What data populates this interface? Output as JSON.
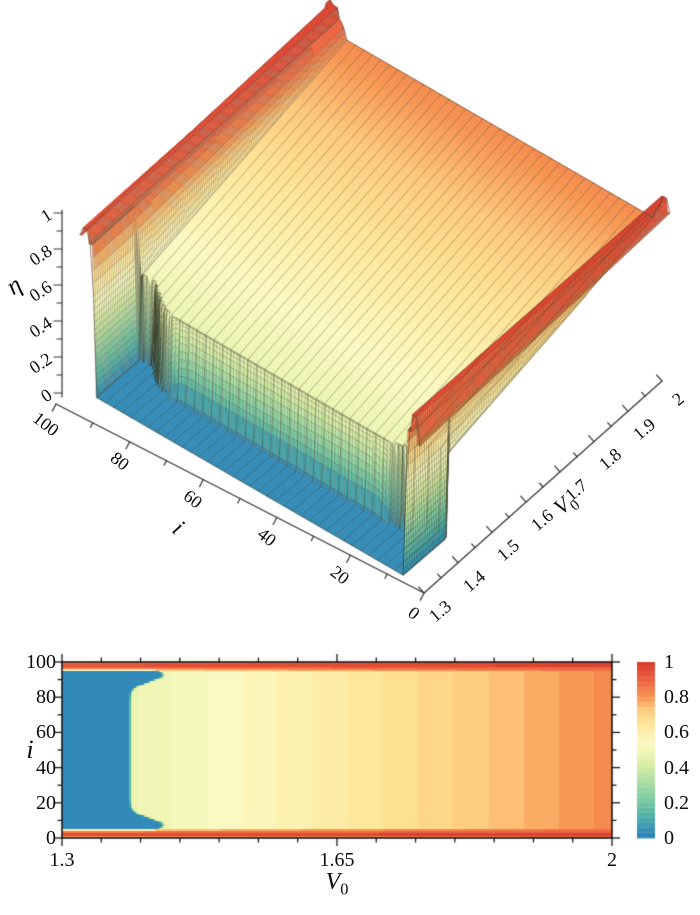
{
  "figure": {
    "background": "#ffffff",
    "surface_plot": {
      "z_axis": {
        "title": "η",
        "tick_labels": [
          "1",
          "0.8",
          "0.6",
          "0.4",
          "0.2",
          "0"
        ],
        "tick_values": [
          1,
          0.8,
          0.6,
          0.4,
          0.2,
          0
        ],
        "range": [
          0,
          1
        ]
      },
      "i_axis": {
        "title": "i",
        "tick_labels": [
          "100",
          "80",
          "60",
          "40",
          "20",
          "0"
        ],
        "tick_values": [
          100,
          80,
          60,
          40,
          20,
          0
        ],
        "range": [
          0,
          100
        ]
      },
      "v_axis": {
        "title": "V",
        "title_sub": "0",
        "tick_labels": [
          "1.3",
          "1.4",
          "1.5",
          "1.6",
          "1.7",
          "1.8",
          "1.9",
          "2"
        ],
        "tick_values": [
          1.3,
          1.4,
          1.5,
          1.6,
          1.7,
          1.8,
          1.9,
          2
        ],
        "range": [
          1.3,
          2
        ]
      }
    },
    "heatmap_plot": {
      "x_axis": {
        "title": "V",
        "title_sub": "0",
        "tick_labels": [
          "1.3",
          "1.65",
          "2"
        ],
        "tick_values": [
          1.3,
          1.65,
          2
        ],
        "minor_step": 0.05,
        "range": [
          1.3,
          2
        ]
      },
      "y_axis": {
        "title": "i",
        "tick_labels": [
          "100",
          "80",
          "60",
          "40",
          "20",
          "0"
        ],
        "tick_values": [
          100,
          80,
          60,
          40,
          20,
          0
        ],
        "minor_step": 10,
        "range": [
          0,
          100
        ]
      },
      "colorbar": {
        "tick_labels": [
          "1",
          "0.8",
          "0.6",
          "0.4",
          "0.2",
          "0"
        ],
        "tick_values": [
          1,
          0.8,
          0.6,
          0.4,
          0.2,
          0
        ],
        "segments": 35
      }
    }
  },
  "colormap": [
    [
      0.0,
      "#2b7fbb"
    ],
    [
      0.06,
      "#3b98b4"
    ],
    [
      0.13,
      "#54b4a6"
    ],
    [
      0.2,
      "#74c6a4"
    ],
    [
      0.3,
      "#a3dba2"
    ],
    [
      0.4,
      "#d3eca4"
    ],
    [
      0.48,
      "#eef6b4"
    ],
    [
      0.54,
      "#fbf9c2"
    ],
    [
      0.6,
      "#fdf0ab"
    ],
    [
      0.66,
      "#fee293"
    ],
    [
      0.73,
      "#fdc97c"
    ],
    [
      0.8,
      "#f79551"
    ],
    [
      0.87,
      "#f07046"
    ],
    [
      0.93,
      "#e5533a"
    ],
    [
      1.0,
      "#d53929"
    ]
  ],
  "chart_data": [
    {
      "type": "surface",
      "title": "",
      "xlabel": "V0",
      "ylabel": "i",
      "zlabel": "eta",
      "x_range": [
        1.3,
        2.0
      ],
      "y_range": [
        0,
        100
      ],
      "z_range": [
        0,
        1
      ],
      "legend": "none",
      "grid": "mesh lines along constant-i every 2.5",
      "model": {
        "valley_level": 0.03,
        "plateau_at_v1.3": 0.42,
        "plateau_at_v2": 0.82,
        "valley_boundary_v0": 1.383,
        "tongue_extra_v0": 0.042,
        "tongue_centers_i": [
          7,
          93
        ],
        "tongue_width_i": 5.5,
        "transition_width_v0": 0.006,
        "bottom_band": {
          "edge_row_eta": [
            0.8,
            0.9
          ],
          "red_line_rows_i": [
            1,
            2
          ],
          "red_line_eta": [
            0.95,
            0.97
          ],
          "inner_row_eta": [
            0.85,
            0.91
          ],
          "extent_i": 4.8
        },
        "top_band": {
          "edge_row_eta": [
            0.88,
            0.97
          ],
          "red_line_rows_i": [
            98,
            99
          ],
          "red_line_eta": [
            0.93,
            0.97
          ],
          "inner_row_eta": [
            0.86,
            0.91
          ],
          "extent_i": 95.2
        },
        "corner_spike": {
          "at": [
            2.0,
            100
          ],
          "eta": 0.99
        }
      },
      "z_grid": {
        "v0_values": [
          1.3,
          1.35,
          1.4,
          1.45,
          1.5,
          1.6,
          1.7,
          1.8,
          1.9,
          2.0
        ],
        "i_values": [
          0,
          2,
          5,
          20,
          50,
          80,
          95,
          98,
          100
        ],
        "eta_rows": [
          [
            0.8,
            0.81,
            0.81,
            0.82,
            0.83,
            0.84,
            0.86,
            0.87,
            0.89,
            0.9
          ],
          [
            0.95,
            0.95,
            0.95,
            0.95,
            0.96,
            0.96,
            0.96,
            0.96,
            0.97,
            0.97
          ],
          [
            0.03,
            0.03,
            0.03,
            0.51,
            0.53,
            0.59,
            0.65,
            0.71,
            0.76,
            0.82
          ],
          [
            0.03,
            0.03,
            0.48,
            0.51,
            0.53,
            0.59,
            0.65,
            0.71,
            0.76,
            0.82
          ],
          [
            0.03,
            0.03,
            0.48,
            0.51,
            0.53,
            0.59,
            0.65,
            0.71,
            0.76,
            0.82
          ],
          [
            0.03,
            0.03,
            0.48,
            0.51,
            0.53,
            0.59,
            0.65,
            0.71,
            0.76,
            0.82
          ],
          [
            0.03,
            0.03,
            0.03,
            0.51,
            0.53,
            0.59,
            0.65,
            0.71,
            0.76,
            0.82
          ],
          [
            0.93,
            0.93,
            0.94,
            0.94,
            0.94,
            0.95,
            0.95,
            0.96,
            0.96,
            0.97
          ],
          [
            0.88,
            0.89,
            0.89,
            0.9,
            0.91,
            0.92,
            0.93,
            0.94,
            0.96,
            0.97
          ]
        ]
      }
    },
    {
      "type": "heatmap",
      "title": "",
      "xlabel": "V0",
      "ylabel": "i",
      "value_label": "eta",
      "x_range": [
        1.3,
        2.0
      ],
      "y_range": [
        0,
        100
      ],
      "value_range": [
        0,
        1
      ],
      "x_ticks": [
        1.3,
        1.65,
        2
      ],
      "y_ticks": [
        0,
        20,
        40,
        60,
        80,
        100
      ],
      "colorbar_ticks": [
        1,
        0.8,
        0.6,
        0.4,
        0.2,
        0
      ],
      "legend_position": "right",
      "z_grid": {
        "v0_values": [
          1.3,
          1.35,
          1.4,
          1.45,
          1.5,
          1.6,
          1.7,
          1.8,
          1.9,
          2.0
        ],
        "i_values": [
          0,
          2,
          5,
          20,
          50,
          80,
          95,
          98,
          100
        ],
        "eta_rows": [
          [
            0.8,
            0.81,
            0.81,
            0.82,
            0.83,
            0.84,
            0.86,
            0.87,
            0.89,
            0.9
          ],
          [
            0.95,
            0.95,
            0.95,
            0.95,
            0.96,
            0.96,
            0.96,
            0.96,
            0.97,
            0.97
          ],
          [
            0.03,
            0.03,
            0.03,
            0.51,
            0.53,
            0.59,
            0.65,
            0.71,
            0.76,
            0.82
          ],
          [
            0.03,
            0.03,
            0.48,
            0.51,
            0.53,
            0.59,
            0.65,
            0.71,
            0.76,
            0.82
          ],
          [
            0.03,
            0.03,
            0.48,
            0.51,
            0.53,
            0.59,
            0.65,
            0.71,
            0.76,
            0.82
          ],
          [
            0.03,
            0.03,
            0.48,
            0.51,
            0.53,
            0.59,
            0.65,
            0.71,
            0.76,
            0.82
          ],
          [
            0.03,
            0.03,
            0.03,
            0.51,
            0.53,
            0.59,
            0.65,
            0.71,
            0.76,
            0.82
          ],
          [
            0.93,
            0.93,
            0.94,
            0.94,
            0.94,
            0.95,
            0.95,
            0.96,
            0.96,
            0.97
          ],
          [
            0.88,
            0.89,
            0.89,
            0.9,
            0.91,
            0.92,
            0.93,
            0.94,
            0.96,
            0.97
          ]
        ]
      }
    }
  ]
}
